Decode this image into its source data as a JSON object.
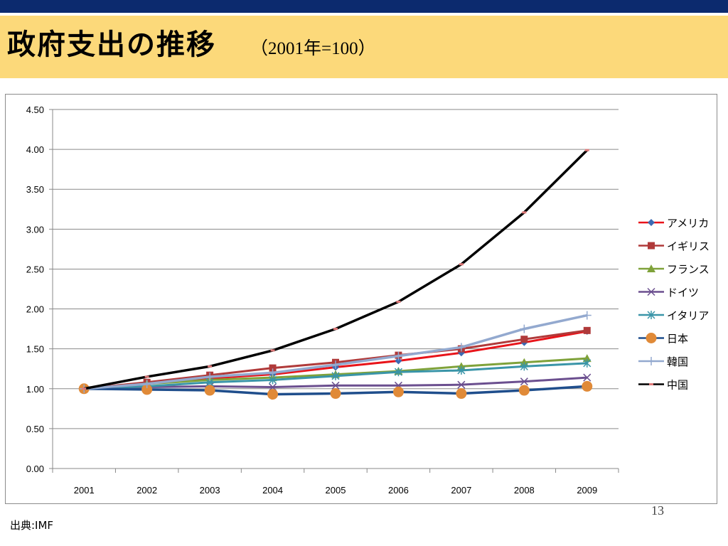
{
  "slide": {
    "title": "政府支出の推移",
    "subtitle": "（2001年=100）",
    "source": "出典:IMF",
    "page_number": "13"
  },
  "chart_data": {
    "type": "line",
    "title": "",
    "xlabel": "",
    "ylabel": "",
    "x": [
      "2001",
      "2002",
      "2003",
      "2004",
      "2005",
      "2006",
      "2007",
      "2008",
      "2009"
    ],
    "ylim": [
      0,
      4.5
    ],
    "yticks": [
      "0.00",
      "0.50",
      "1.00",
      "1.50",
      "2.00",
      "2.50",
      "3.00",
      "3.50",
      "4.00",
      "4.50"
    ],
    "grid": true,
    "legend_position": "right",
    "series": [
      {
        "name": "アメリカ",
        "color": "#e8141a",
        "marker": "diamond",
        "marker_color": "#3c6ab3",
        "values": [
          1.0,
          1.07,
          1.13,
          1.18,
          1.27,
          1.35,
          1.45,
          1.58,
          1.72
        ]
      },
      {
        "name": "イギリス",
        "color": "#b03a3a",
        "marker": "square",
        "marker_color": "#b03a3a",
        "values": [
          1.0,
          1.08,
          1.17,
          1.26,
          1.33,
          1.42,
          1.5,
          1.62,
          1.73
        ]
      },
      {
        "name": "フランス",
        "color": "#7fa23a",
        "marker": "triangle",
        "marker_color": "#7fa23a",
        "values": [
          1.0,
          1.06,
          1.11,
          1.14,
          1.18,
          1.22,
          1.28,
          1.33,
          1.38
        ]
      },
      {
        "name": "ドイツ",
        "color": "#6b4f8f",
        "marker": "x",
        "marker_color": "#6b4f8f",
        "values": [
          1.0,
          1.02,
          1.03,
          1.02,
          1.04,
          1.04,
          1.05,
          1.09,
          1.14
        ]
      },
      {
        "name": "イタリア",
        "color": "#3a95a8",
        "marker": "asterisk",
        "marker_color": "#3a95a8",
        "values": [
          1.0,
          1.03,
          1.08,
          1.11,
          1.16,
          1.21,
          1.23,
          1.28,
          1.32
        ]
      },
      {
        "name": "日本",
        "color": "#1f4e8c",
        "marker": "circle",
        "marker_color": "#e08a38",
        "values": [
          1.0,
          0.99,
          0.98,
          0.93,
          0.94,
          0.96,
          0.94,
          0.98,
          1.03
        ]
      },
      {
        "name": "韓国",
        "color": "#93a9cf",
        "marker": "plus",
        "marker_color": "#93a9cf",
        "values": [
          1.0,
          1.06,
          1.15,
          1.2,
          1.3,
          1.41,
          1.52,
          1.75,
          1.92
        ]
      },
      {
        "name": "中国",
        "color": "#000000",
        "marker": "dash",
        "marker_color": "#e07a7a",
        "values": [
          1.0,
          1.15,
          1.28,
          1.48,
          1.75,
          2.09,
          2.56,
          3.21,
          3.99
        ]
      }
    ]
  }
}
